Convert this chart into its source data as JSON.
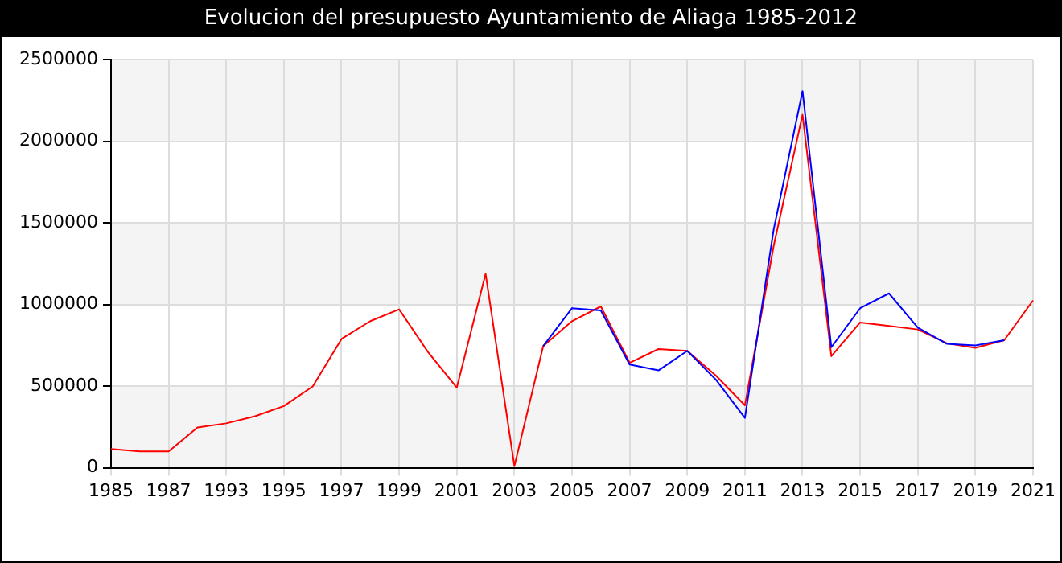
{
  "chart_data": {
    "type": "line",
    "title": "Evolucion del presupuesto Ayuntamiento de Aliaga 1985-2012",
    "categories": [
      "1985",
      null,
      "1987",
      null,
      "1993",
      null,
      "1995",
      null,
      "1997",
      null,
      "1999",
      null,
      "2001",
      null,
      "2003",
      null,
      "2005",
      null,
      "2007",
      null,
      "2009",
      null,
      "2011",
      null,
      "2013",
      null,
      "2015",
      null,
      "2017",
      null,
      "2019",
      null,
      "2021"
    ],
    "series": [
      {
        "color": "#0000ff",
        "values": [
          null,
          null,
          null,
          null,
          null,
          null,
          null,
          null,
          null,
          null,
          null,
          null,
          null,
          null,
          null,
          745000,
          977000,
          963000,
          632000,
          596000,
          716000,
          538000,
          305000,
          1460000,
          2307000,
          738000,
          977000,
          1068000,
          858000,
          759000,
          749000,
          781000,
          null
        ]
      },
      {
        "color": "#ff0000",
        "values": [
          115000,
          100000,
          100000,
          247000,
          272000,
          316000,
          378000,
          498000,
          789000,
          898000,
          970000,
          709000,
          491000,
          1188000,
          10000,
          745000,
          898000,
          988000,
          643000,
          727000,
          716000,
          563000,
          382000,
          1360000,
          2162000,
          683000,
          890000,
          868000,
          847000,
          763000,
          734000,
          781000,
          1025000
        ]
      }
    ],
    "ylim": [
      0,
      2500000
    ],
    "yticks": [
      0,
      500000,
      1000000,
      1500000,
      2000000,
      2500000
    ],
    "grid": true,
    "marker": "none"
  }
}
